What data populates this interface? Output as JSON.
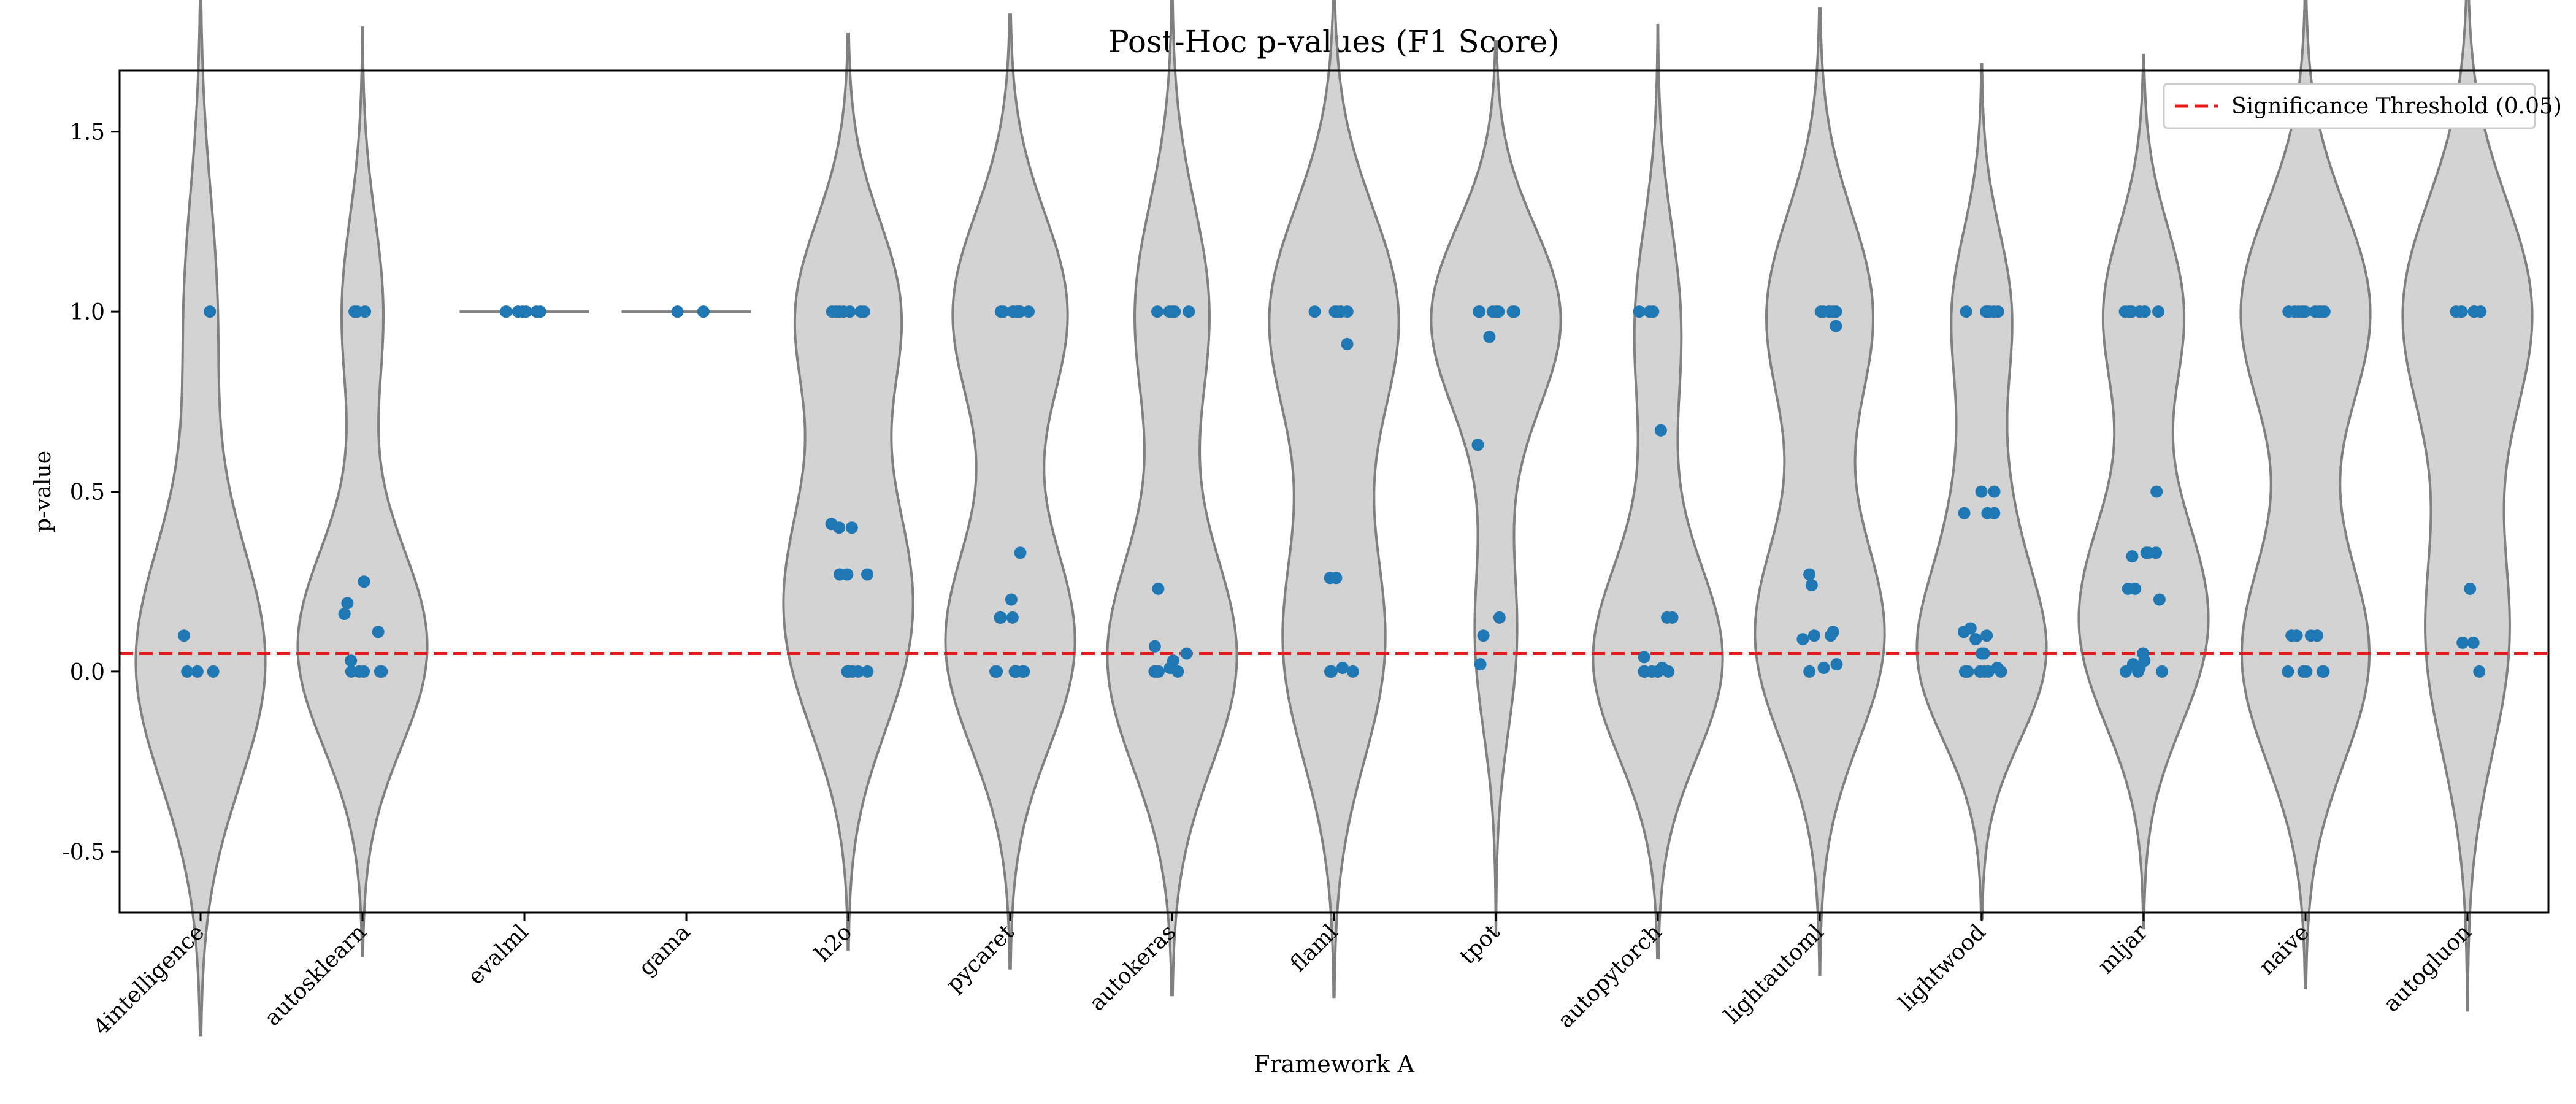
{
  "chart_data": {
    "type": "violin",
    "title": "Post-Hoc p-values (F1 Score)",
    "xlabel": "Framework A",
    "ylabel": "p-value",
    "ylim": [
      -0.67,
      1.67
    ],
    "yticks": [
      -0.5,
      0.0,
      0.5,
      1.0,
      1.5
    ],
    "ytick_labels": [
      "-0.5",
      "0.0",
      "0.5",
      "1.0",
      "1.5"
    ],
    "threshold": {
      "value": 0.05,
      "label": "Significance Threshold (0.05)",
      "color": "#e41a1c"
    },
    "legend_position": "top-right",
    "violin_fill": "#d3d3d3",
    "violin_edge": "#808080",
    "point_color": "#1f77b4",
    "categories": [
      {
        "name": "4intelligence",
        "points": [
          1.0,
          0.1,
          0.0,
          0.0,
          0.0
        ]
      },
      {
        "name": "autosklearn",
        "points": [
          1.0,
          1.0,
          1.0,
          0.25,
          0.19,
          0.16,
          0.11,
          0.03,
          0.0,
          0.0,
          0.0,
          0.0,
          0.0
        ]
      },
      {
        "name": "evalml",
        "points": [
          1.0,
          1.0,
          1.0,
          1.0,
          1.0,
          1.0,
          1.0
        ]
      },
      {
        "name": "gama",
        "points": [
          1.0,
          1.0
        ]
      },
      {
        "name": "h2o",
        "points": [
          1.0,
          1.0,
          1.0,
          1.0,
          1.0,
          1.0,
          1.0,
          0.41,
          0.4,
          0.4,
          0.27,
          0.27,
          0.27,
          0.0,
          0.0,
          0.0,
          0.0,
          0.0
        ]
      },
      {
        "name": "pycaret",
        "points": [
          1.0,
          1.0,
          1.0,
          1.0,
          1.0,
          1.0,
          1.0,
          1.0,
          1.0,
          0.33,
          0.2,
          0.15,
          0.15,
          0.15,
          0.0,
          0.0,
          0.0,
          0.0,
          0.0,
          0.0
        ]
      },
      {
        "name": "autokeras",
        "points": [
          1.0,
          1.0,
          1.0,
          1.0,
          1.0,
          0.23,
          0.07,
          0.05,
          0.03,
          0.01,
          0.0,
          0.0,
          0.0,
          0.0
        ]
      },
      {
        "name": "flaml",
        "points": [
          1.0,
          1.0,
          1.0,
          1.0,
          1.0,
          1.0,
          0.91,
          0.26,
          0.26,
          0.01,
          0.0,
          0.0,
          0.0
        ]
      },
      {
        "name": "tpot",
        "points": [
          1.0,
          1.0,
          1.0,
          1.0,
          1.0,
          1.0,
          1.0,
          1.0,
          0.93,
          0.63,
          0.15,
          0.1,
          0.02
        ]
      },
      {
        "name": "autopytorch",
        "points": [
          1.0,
          1.0,
          1.0,
          0.67,
          0.15,
          0.15,
          0.04,
          0.01,
          0.0,
          0.0,
          0.0,
          0.0,
          0.0,
          0.0
        ]
      },
      {
        "name": "lightautoml",
        "points": [
          1.0,
          1.0,
          1.0,
          1.0,
          1.0,
          1.0,
          0.96,
          0.27,
          0.24,
          0.11,
          0.1,
          0.1,
          0.09,
          0.02,
          0.01,
          0.0
        ]
      },
      {
        "name": "lightwood",
        "points": [
          1.0,
          1.0,
          1.0,
          1.0,
          1.0,
          1.0,
          1.0,
          0.5,
          0.5,
          0.44,
          0.44,
          0.44,
          0.12,
          0.11,
          0.1,
          0.09,
          0.05,
          0.05,
          0.01,
          0.0,
          0.0,
          0.0,
          0.0,
          0.0,
          0.0,
          0.0,
          0.0
        ]
      },
      {
        "name": "mljar",
        "points": [
          1.0,
          1.0,
          1.0,
          1.0,
          1.0,
          1.0,
          1.0,
          1.0,
          0.5,
          0.33,
          0.33,
          0.33,
          0.32,
          0.23,
          0.23,
          0.2,
          0.05,
          0.05,
          0.03,
          0.02,
          0.01,
          0.0,
          0.0,
          0.0
        ]
      },
      {
        "name": "naive",
        "points": [
          1.0,
          1.0,
          1.0,
          1.0,
          1.0,
          1.0,
          1.0,
          1.0,
          1.0,
          0.1,
          0.1,
          0.1,
          0.1,
          0.0,
          0.0,
          0.0,
          0.0,
          0.0
        ]
      },
      {
        "name": "autogluon",
        "points": [
          1.0,
          1.0,
          1.0,
          1.0,
          1.0,
          1.0,
          0.23,
          0.08,
          0.08,
          0.0
        ]
      }
    ]
  }
}
